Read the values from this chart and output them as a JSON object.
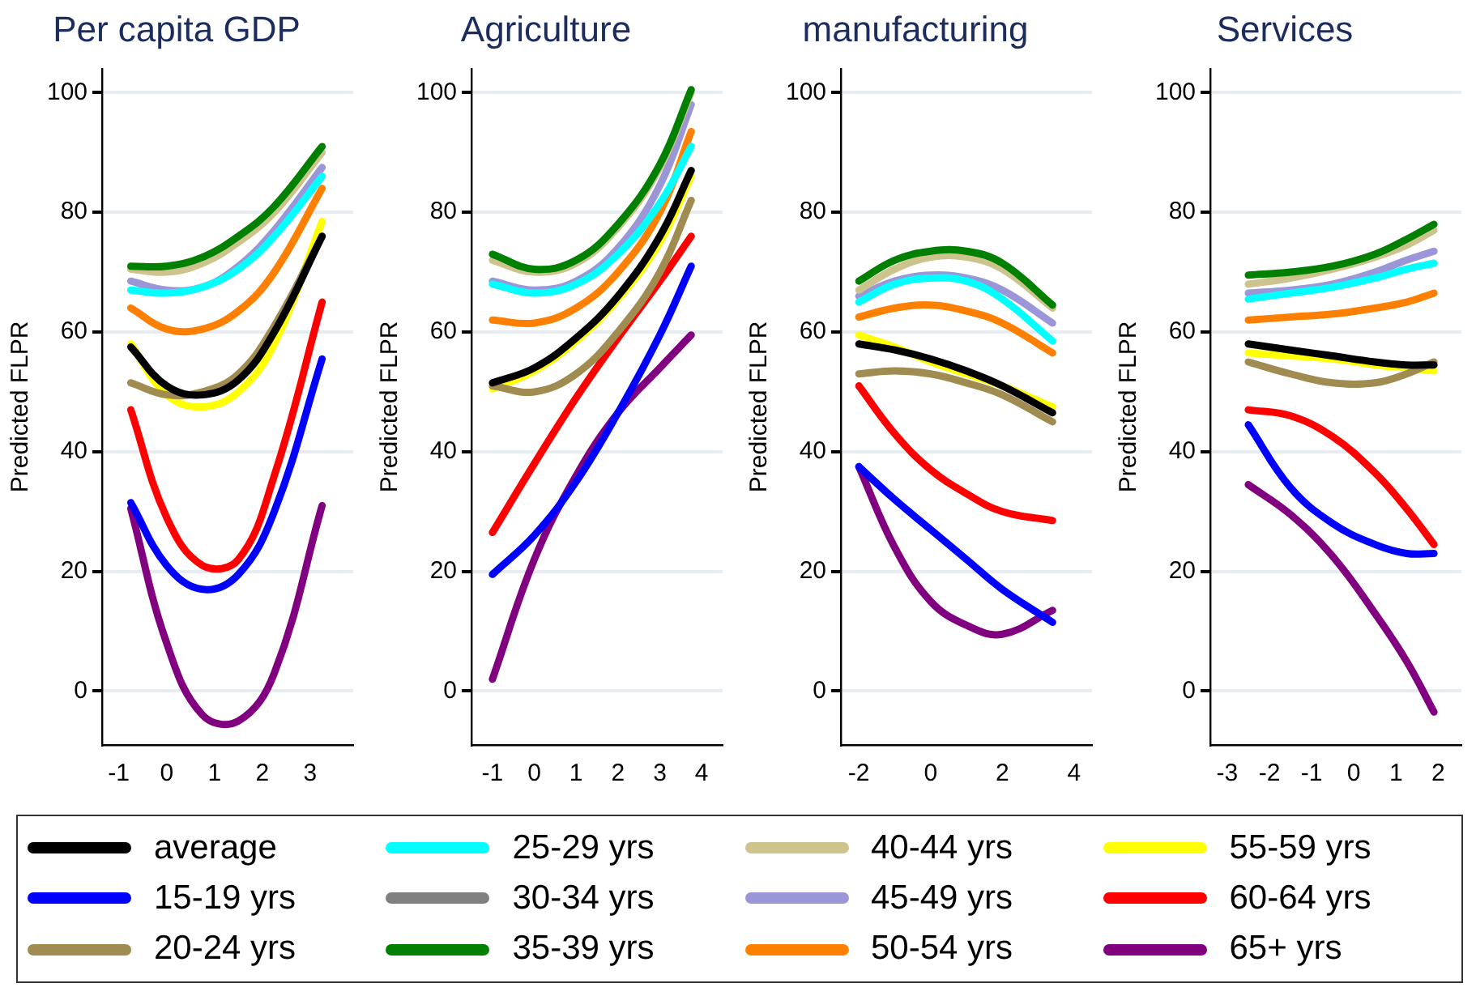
{
  "chart_data": [
    {
      "type": "line",
      "title": "Per capita GDP",
      "ylabel": "Predicted FLPR",
      "x": [
        -0.75,
        0,
        0.75,
        1.5,
        2.25,
        3.25
      ],
      "xlim": [
        -1.35,
        3.9
      ],
      "xticks": [
        -1,
        0,
        1,
        2,
        3
      ],
      "ylim": [
        -9,
        104
      ],
      "yticks": [
        0,
        20,
        40,
        60,
        80,
        100
      ],
      "grid": "y",
      "legend": "bottom",
      "series": [
        {
          "name": "average",
          "color": "#000000",
          "values": [
            57.5,
            51,
            49.5,
            52,
            60,
            76
          ]
        },
        {
          "name": "15-19 yrs",
          "color": "#0000ff",
          "values": [
            31.5,
            21,
            17,
            19.5,
            30,
            55.5
          ]
        },
        {
          "name": "20-24 yrs",
          "color": "#a08c50",
          "values": [
            51.5,
            49.5,
            50,
            53,
            61,
            76
          ]
        },
        {
          "name": "25-29 yrs",
          "color": "#00ffff",
          "values": [
            67,
            66.5,
            67.5,
            70.5,
            76,
            86
          ]
        },
        {
          "name": "30-34 yrs",
          "color": "#808080",
          "values": [
            null,
            null,
            null,
            null,
            null,
            null
          ]
        },
        {
          "name": "35-39 yrs",
          "color": "#008000",
          "values": [
            71,
            71,
            72.5,
            76,
            81,
            91
          ]
        },
        {
          "name": "40-44 yrs",
          "color": "#cdc38c",
          "values": [
            70.5,
            70,
            71.5,
            75,
            80,
            90
          ]
        },
        {
          "name": "45-49 yrs",
          "color": "#9b96d8",
          "values": [
            68.5,
            67,
            67.5,
            71,
            77,
            87.5
          ]
        },
        {
          "name": "50-54 yrs",
          "color": "#ff8000",
          "values": [
            64,
            60.5,
            60.5,
            63.5,
            70,
            84
          ]
        },
        {
          "name": "55-59 yrs",
          "color": "#ffff00",
          "values": [
            58,
            49.5,
            47.5,
            50,
            58,
            78.5
          ]
        },
        {
          "name": "60-64 yrs",
          "color": "#ff0000",
          "values": [
            47,
            29,
            21,
            22,
            36,
            65
          ]
        },
        {
          "name": "65+ yrs",
          "color": "#800080",
          "values": [
            30.5,
            8,
            -4,
            -5,
            3,
            31
          ]
        }
      ]
    },
    {
      "type": "line",
      "title": "Agriculture",
      "ylabel": "Predicted FLPR",
      "x": [
        -1,
        0,
        1,
        2,
        3,
        3.75
      ],
      "xlim": [
        -1.5,
        4.5
      ],
      "xticks": [
        -1,
        0,
        1,
        2,
        3,
        4
      ],
      "ylim": [
        -9,
        104
      ],
      "yticks": [
        0,
        20,
        40,
        60,
        80,
        100
      ],
      "grid": "y",
      "series": [
        {
          "color": "#000000",
          "values": [
            51.5,
            54,
            59,
            66,
            76,
            87
          ]
        },
        {
          "color": "#0000ff",
          "values": [
            19.5,
            26,
            35,
            46.5,
            59.5,
            71
          ]
        },
        {
          "color": "#a08c50",
          "values": [
            51,
            50,
            53,
            60,
            70,
            82
          ]
        },
        {
          "color": "#00ffff",
          "values": [
            68,
            66.5,
            68,
            73,
            81.5,
            91
          ]
        },
        {
          "color": "#008000",
          "values": [
            73,
            70.5,
            72,
            78,
            88,
            100.5
          ]
        },
        {
          "color": "#cdc38c",
          "values": [
            72,
            70,
            71.5,
            77.5,
            87.5,
            100
          ]
        },
        {
          "color": "#9b96d8",
          "values": [
            68.5,
            67,
            68.5,
            74,
            84.5,
            98
          ]
        },
        {
          "color": "#ff8000",
          "values": [
            62,
            61.5,
            64,
            70,
            80,
            93.5
          ]
        },
        {
          "color": "#ffff00",
          "values": [
            50.5,
            53.5,
            58.5,
            65.5,
            75,
            86
          ]
        },
        {
          "color": "#ff0000",
          "values": [
            26.5,
            38,
            49,
            59,
            68.5,
            76
          ]
        },
        {
          "color": "#800080",
          "values": [
            2,
            22,
            36,
            46.5,
            54,
            59.5
          ]
        }
      ]
    },
    {
      "type": "line",
      "title": "manufacturing",
      "ylabel": "Predicted FLPR",
      "x": [
        -2,
        -1,
        0,
        1,
        2,
        3.4
      ],
      "xlim": [
        -2.5,
        4.5
      ],
      "xticks": [
        -2,
        0,
        2,
        4
      ],
      "ylim": [
        -9,
        104
      ],
      "yticks": [
        0,
        20,
        40,
        60,
        80,
        100
      ],
      "grid": "y",
      "series": [
        {
          "color": "#000000",
          "values": [
            58,
            57,
            55.5,
            53.5,
            51,
            46.5
          ]
        },
        {
          "color": "#0000ff",
          "values": [
            37.5,
            32,
            27,
            22,
            17,
            11.5
          ]
        },
        {
          "color": "#a08c50",
          "values": [
            53,
            53.5,
            53,
            51.5,
            49.5,
            45
          ]
        },
        {
          "color": "#00ffff",
          "values": [
            65,
            68,
            69,
            68.5,
            65.5,
            58.5
          ]
        },
        {
          "color": "#008000",
          "values": [
            68.5,
            72,
            73.5,
            73.5,
            71.5,
            64.5
          ]
        },
        {
          "color": "#cdc38c",
          "values": [
            67,
            70.5,
            72.5,
            72.5,
            70.5,
            64
          ]
        },
        {
          "color": "#9b96d8",
          "values": [
            66,
            68.5,
            69.5,
            69,
            67,
            61.5
          ]
        },
        {
          "color": "#ff8000",
          "values": [
            62.5,
            64,
            64.5,
            63.5,
            61.5,
            56.5
          ]
        },
        {
          "color": "#ffff00",
          "values": [
            59.5,
            57.5,
            55,
            53,
            51,
            47.5
          ]
        },
        {
          "color": "#ff0000",
          "values": [
            51,
            43,
            37,
            33,
            30,
            28.5
          ]
        },
        {
          "color": "#800080",
          "values": [
            37.5,
            24,
            15,
            11,
            9.5,
            13.5
          ]
        }
      ]
    },
    {
      "type": "line",
      "title": "Services",
      "ylabel": "Predicted FLPR",
      "x": [
        -2.5,
        -1.5,
        -0.5,
        0.5,
        1.25,
        1.9
      ],
      "xlim": [
        -3.4,
        2.55
      ],
      "xticks": [
        -3,
        -2,
        -1,
        0,
        1,
        2
      ],
      "ylim": [
        -9,
        104
      ],
      "yticks": [
        0,
        20,
        40,
        60,
        80,
        100
      ],
      "grid": "y",
      "series": [
        {
          "color": "#000000",
          "values": [
            58,
            57,
            56,
            55,
            54.5,
            54.5
          ]
        },
        {
          "color": "#0000ff",
          "values": [
            44.5,
            34,
            28,
            24.5,
            23,
            23
          ]
        },
        {
          "color": "#a08c50",
          "values": [
            55,
            53,
            51.5,
            51.5,
            53,
            55
          ]
        },
        {
          "color": "#00ffff",
          "values": [
            65.5,
            66.5,
            67.5,
            69,
            70.5,
            71.5
          ]
        },
        {
          "color": "#008000",
          "values": [
            69.5,
            70,
            71,
            73,
            75.5,
            78
          ]
        },
        {
          "color": "#cdc38c",
          "values": [
            68,
            69,
            70.5,
            72.5,
            74.5,
            77
          ]
        },
        {
          "color": "#9b96d8",
          "values": [
            66.5,
            67,
            68,
            70,
            72,
            73.5
          ]
        },
        {
          "color": "#ff8000",
          "values": [
            62,
            62.5,
            63,
            64,
            65,
            66.5
          ]
        },
        {
          "color": "#ffff00",
          "values": [
            56.5,
            56,
            55.5,
            54.5,
            54,
            53.5
          ]
        },
        {
          "color": "#ff0000",
          "values": [
            47,
            46,
            42.5,
            36.5,
            30.5,
            24.5
          ]
        },
        {
          "color": "#800080",
          "values": [
            34.5,
            29.5,
            22.5,
            13,
            5,
            -3.5
          ]
        }
      ]
    }
  ]
}
